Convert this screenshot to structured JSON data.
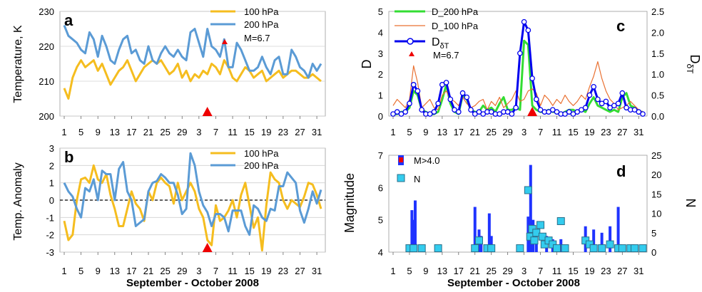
{
  "xaxis": {
    "tick_labels": [
      "1",
      "5",
      "9",
      "13",
      "17",
      "21",
      "25",
      "29",
      "3",
      "7",
      "11",
      "15",
      "19",
      "23",
      "27",
      "31"
    ],
    "tick_labels_c": [
      "1",
      "5",
      "9",
      "13",
      "17",
      "21",
      "25",
      "29",
      "3",
      "7",
      "11",
      "15",
      "19",
      "23",
      "27",
      "31"
    ],
    "tick_labels_d": [
      "1",
      "5",
      "9",
      "13",
      "17",
      "21",
      "25",
      "29",
      "3",
      "7",
      "11",
      "15",
      "19",
      "23",
      "27",
      "31"
    ],
    "xlabel": "September - October 2008"
  },
  "colors": {
    "p100": "#f5bd1f",
    "p200": "#5b9bd5",
    "d200": "#33dd33",
    "d100": "#e97132",
    "dT": "#0000ee",
    "marker": "#ee0000",
    "bar": "#1f33ff",
    "sq": "#33ccee"
  },
  "chart_data": [
    {
      "id": "a",
      "type": "line",
      "panel_label": "a",
      "ylabel": "Temperature, K",
      "ylim": [
        200,
        230
      ],
      "yticks": [
        "200",
        "210",
        "220",
        "230"
      ],
      "x_range": [
        1,
        62
      ],
      "legend": [
        "100 hPa",
        "200 hPa",
        "M=6.7"
      ],
      "marker_day": 35,
      "series": [
        {
          "name": "100 hPa",
          "values": [
            208,
            205,
            211,
            214,
            216,
            214,
            215,
            216,
            213,
            215,
            212,
            209,
            211,
            213,
            214,
            216,
            213,
            210,
            212,
            214,
            215,
            216,
            215,
            216,
            214,
            212,
            213,
            215,
            211,
            213,
            210,
            212,
            211,
            213,
            212,
            215,
            214,
            212,
            216,
            214,
            211,
            210,
            212,
            214,
            213,
            211,
            212,
            213,
            210,
            211,
            212,
            213,
            211,
            212,
            213,
            213,
            212,
            211,
            211,
            212,
            211,
            210
          ]
        },
        {
          "name": "200 hPa",
          "values": [
            226,
            223,
            222,
            221,
            219,
            218,
            224,
            222,
            217,
            223,
            220,
            216,
            215,
            219,
            222,
            223,
            218,
            219,
            216,
            215,
            220,
            216,
            215,
            218,
            220,
            218,
            217,
            219,
            217,
            216,
            224,
            225,
            221,
            217,
            225,
            220,
            219,
            217,
            222,
            214,
            214,
            221,
            219,
            216,
            213,
            213,
            214,
            217,
            214,
            212,
            216,
            217,
            212,
            212,
            219,
            217,
            214,
            213,
            211,
            215,
            213,
            215
          ]
        }
      ]
    },
    {
      "id": "b",
      "type": "line",
      "panel_label": "b",
      "ylabel": "Temp. Anomaly",
      "ylim": [
        -3,
        3
      ],
      "yticks": [
        "-3",
        "-2",
        "-1",
        "0",
        "1",
        "2",
        "3"
      ],
      "x_range": [
        1,
        62
      ],
      "legend": [
        "100 hPa",
        "200 hPa"
      ],
      "marker_day": 35,
      "series": [
        {
          "name": "100 hPa",
          "values": [
            -1.2,
            -2.3,
            -2.0,
            0.0,
            1.2,
            1.3,
            1.0,
            2.0,
            1.2,
            1.0,
            1.5,
            0.3,
            -0.5,
            -1.5,
            -1.5,
            -0.5,
            0.5,
            -0.2,
            -0.5,
            -1.2,
            0.5,
            0.0,
            1.0,
            1.3,
            1.0,
            0.8,
            -0.2,
            1.0,
            0.0,
            0.5,
            1.0,
            0.5,
            -0.5,
            -1.0,
            -2.3,
            -2.6,
            -0.3,
            -1.2,
            -1.0,
            -0.6,
            0.0,
            -1.0,
            0.3,
            1.0,
            -0.3,
            -1.6,
            -1.0,
            -2.9,
            -0.3,
            1.6,
            1.2,
            1.0,
            0.0,
            -0.5,
            0.0,
            -0.2,
            -0.4,
            0.2,
            1.0,
            0.9,
            0.3,
            -0.5
          ]
        },
        {
          "name": "200 hPa",
          "values": [
            1.0,
            0.5,
            0.2,
            -0.5,
            -1.0,
            0.7,
            0.5,
            1.2,
            0.0,
            1.7,
            1.5,
            1.5,
            0.0,
            1.8,
            2.2,
            0.5,
            0.0,
            -1.5,
            -1.3,
            -1.1,
            0.5,
            1.0,
            1.1,
            1.5,
            1.3,
            1.0,
            1.0,
            0.3,
            -0.8,
            -0.5,
            2.7,
            2.0,
            0.5,
            -0.3,
            -0.7,
            -1.5,
            -0.8,
            -0.8,
            -1.0,
            -1.8,
            -0.6,
            -0.6,
            -0.6,
            -1.5,
            -2.0,
            -0.3,
            -0.5,
            -1.0,
            -1.2,
            -0.5,
            -0.6,
            0.8,
            0.8,
            1.6,
            1.3,
            1.0,
            -0.6,
            -1.3,
            -0.5,
            0.5,
            -0.2,
            0.6
          ]
        }
      ]
    },
    {
      "id": "c",
      "type": "line",
      "panel_label": "c",
      "ylabel": "D",
      "ylabel_right": "D",
      "ylabel_right_sub": "δT",
      "ylim": [
        0,
        5
      ],
      "ylim_right": [
        0,
        2.5
      ],
      "yticks": [
        "0",
        "1",
        "2",
        "3",
        "4",
        "5"
      ],
      "yticks_right": [
        "0.0",
        "0.5",
        "1.0",
        "1.5",
        "2.0",
        "2.5"
      ],
      "x_range": [
        1,
        62
      ],
      "legend": [
        "D_200 hPa",
        "D_100 hPa",
        "D",
        "M=6.7"
      ],
      "legend_sub": "δT",
      "marker_day": 35,
      "series": [
        {
          "name": "D_200 hPa",
          "axis": "left",
          "values": [
            0.1,
            0.1,
            0.2,
            0.2,
            0.4,
            1.2,
            1.0,
            0.3,
            0.2,
            0.1,
            0.1,
            0.2,
            0.8,
            1.5,
            0.6,
            0.2,
            0.1,
            1.0,
            0.8,
            0.3,
            0.2,
            0.2,
            0.5,
            0.3,
            0.4,
            0.2,
            0.6,
            0.9,
            0.3,
            0.3,
            0.4,
            0.3,
            3.6,
            3.4,
            0.5,
            0.3,
            0.2,
            0.2,
            0.3,
            0.2,
            0.2,
            0.1,
            0.2,
            0.3,
            0.3,
            0.2,
            0.3,
            0.2,
            0.6,
            0.9,
            0.5,
            0.4,
            0.3,
            0.2,
            0.3,
            0.2,
            0.9,
            1.1,
            0.5,
            0.4,
            0.2,
            0.2
          ]
        },
        {
          "name": "D_100 hPa",
          "axis": "left",
          "values": [
            0.5,
            0.8,
            0.6,
            0.4,
            0.8,
            2.4,
            1.6,
            0.4,
            0.6,
            0.8,
            0.4,
            0.3,
            1.0,
            1.2,
            0.8,
            0.7,
            0.5,
            0.9,
            0.6,
            0.4,
            0.5,
            0.7,
            0.8,
            0.3,
            0.7,
            0.5,
            0.9,
            0.4,
            0.6,
            0.8,
            1.2,
            0.7,
            0.8,
            1.2,
            1.3,
            1.1,
            0.5,
            1.0,
            0.8,
            0.5,
            0.8,
            0.6,
            1.0,
            0.7,
            0.5,
            0.7,
            1.0,
            0.8,
            1.4,
            1.9,
            2.6,
            1.8,
            1.2,
            0.8,
            0.6,
            0.3,
            0.4,
            0.5,
            0.7,
            0.5,
            0.3,
            0.2
          ]
        },
        {
          "name": "D",
          "axis": "right",
          "values": [
            0.05,
            0.1,
            0.05,
            0.1,
            0.3,
            0.75,
            0.6,
            0.15,
            0.05,
            0.05,
            0.1,
            0.3,
            0.75,
            0.8,
            0.4,
            0.15,
            0.1,
            0.55,
            0.45,
            0.15,
            0.05,
            0.1,
            0.05,
            0.1,
            0.1,
            0.05,
            0.05,
            0.1,
            0.1,
            0.05,
            0.2,
            1.5,
            2.25,
            2.05,
            0.9,
            0.4,
            0.15,
            0.1,
            0.1,
            0.15,
            0.1,
            0.05,
            0.05,
            0.1,
            0.05,
            0.1,
            0.15,
            0.2,
            0.5,
            0.7,
            0.4,
            0.3,
            0.35,
            0.2,
            0.25,
            0.3,
            0.55,
            0.2,
            0.15,
            0.15,
            0.1,
            0.05
          ]
        }
      ]
    },
    {
      "id": "d",
      "type": "bar",
      "panel_label": "d",
      "ylabel": "Magnitude",
      "ylabel_right": "N",
      "ylim": [
        4,
        7
      ],
      "ylim_right": [
        0,
        25
      ],
      "yticks": [
        "4",
        "5",
        "6",
        "7"
      ],
      "yticks_right": [
        "0",
        "5",
        "10",
        "15",
        "20",
        "25"
      ],
      "x_range": [
        1,
        62
      ],
      "legend": [
        "M>4.0",
        "N"
      ],
      "magnitude_bars": [
        {
          "day": 5.6,
          "mag": 5.3
        },
        {
          "day": 6.0,
          "mag": 5.0
        },
        {
          "day": 6.4,
          "mag": 5.6
        },
        {
          "day": 12.0,
          "mag": 4.2
        },
        {
          "day": 21.0,
          "mag": 5.4
        },
        {
          "day": 22.0,
          "mag": 4.7
        },
        {
          "day": 22.5,
          "mag": 4.5
        },
        {
          "day": 24.5,
          "mag": 5.2
        },
        {
          "day": 25.0,
          "mag": 4.5
        },
        {
          "day": 34.0,
          "mag": 5.1
        },
        {
          "day": 34.6,
          "mag": 6.7
        },
        {
          "day": 35.2,
          "mag": 5.0
        },
        {
          "day": 36.0,
          "mag": 4.7
        },
        {
          "day": 38.5,
          "mag": 4.5
        },
        {
          "day": 40.0,
          "mag": 4.4
        },
        {
          "day": 42.0,
          "mag": 4.4
        },
        {
          "day": 48.0,
          "mag": 4.8
        },
        {
          "day": 50.0,
          "mag": 4.7
        },
        {
          "day": 52.0,
          "mag": 4.6
        },
        {
          "day": 54.0,
          "mag": 4.8
        },
        {
          "day": 56.0,
          "mag": 5.4
        }
      ],
      "count_points": [
        {
          "day": 5,
          "n": 1
        },
        {
          "day": 6,
          "n": 1
        },
        {
          "day": 8,
          "n": 1
        },
        {
          "day": 12,
          "n": 1
        },
        {
          "day": 21,
          "n": 1
        },
        {
          "day": 22,
          "n": 3
        },
        {
          "day": 24,
          "n": 1
        },
        {
          "day": 25,
          "n": 1
        },
        {
          "day": 32,
          "n": 1
        },
        {
          "day": 34,
          "n": 16
        },
        {
          "day": 34.5,
          "n": 4
        },
        {
          "day": 35,
          "n": 6
        },
        {
          "day": 35.5,
          "n": 3
        },
        {
          "day": 36,
          "n": 5
        },
        {
          "day": 37,
          "n": 7
        },
        {
          "day": 37.5,
          "n": 4
        },
        {
          "day": 38,
          "n": 2
        },
        {
          "day": 39,
          "n": 3
        },
        {
          "day": 40,
          "n": 2
        },
        {
          "day": 41,
          "n": 1
        },
        {
          "day": 42,
          "n": 8
        },
        {
          "day": 43,
          "n": 1
        },
        {
          "day": 48,
          "n": 3
        },
        {
          "day": 49,
          "n": 2
        },
        {
          "day": 50,
          "n": 1
        },
        {
          "day": 52,
          "n": 1
        },
        {
          "day": 54,
          "n": 2
        },
        {
          "day": 56,
          "n": 1
        },
        {
          "day": 57,
          "n": 1
        },
        {
          "day": 59,
          "n": 1
        },
        {
          "day": 60,
          "n": 1
        },
        {
          "day": 62,
          "n": 1
        }
      ]
    }
  ]
}
